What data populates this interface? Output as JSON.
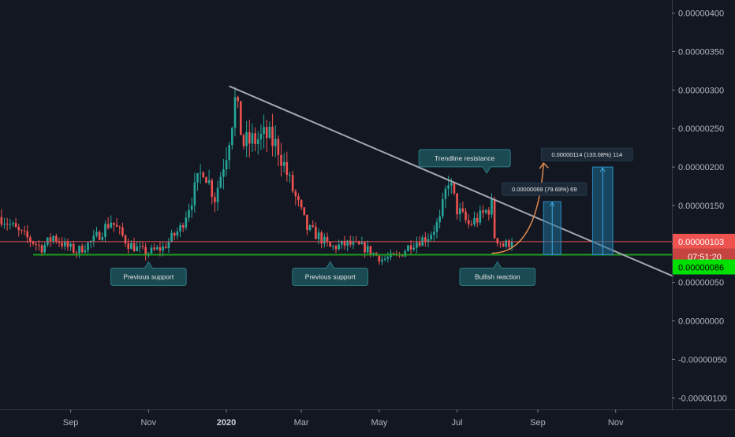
{
  "chart_data": {
    "type": "candlestick",
    "y_ticks": [
      "0.00000400",
      "0.00000350",
      "0.00000300",
      "0.00000250",
      "0.00000200",
      "0.00000150",
      "0.00000100",
      "0.00000050",
      "0.00000000",
      "-0.00000050",
      "-0.00000100"
    ],
    "y_tick_values": [
      4e-06,
      3.5e-06,
      3e-06,
      2.5e-06,
      2e-06,
      1.5e-06,
      1e-06,
      5e-07,
      0.0,
      -5e-07,
      -1e-06
    ],
    "y_range": [
      -1.15e-06,
      4.17e-06
    ],
    "x_ticks": [
      {
        "label": "Sep",
        "bold": false
      },
      {
        "label": "Nov",
        "bold": false
      },
      {
        "label": "2020",
        "bold": true
      },
      {
        "label": "Mar",
        "bold": false
      },
      {
        "label": "May",
        "bold": false
      },
      {
        "label": "Jul",
        "bold": false
      },
      {
        "label": "Sep",
        "bold": false
      },
      {
        "label": "Nov",
        "bold": false
      }
    ],
    "x_tick_index": [
      24,
      51,
      78,
      104,
      131,
      158,
      186,
      213
    ],
    "x_range": [
      0,
      233
    ],
    "grid": false,
    "colors": {
      "up": "#26a69a",
      "down": "#ef5350",
      "background": "#131722",
      "support": "#1e9e1e",
      "trendline": "#a4a7b0",
      "resistance_line": "#e05555",
      "measure": "#1e6e96",
      "arrow": "#e08a4d"
    },
    "price_waypoints": [
      [
        0,
        1.35e-06
      ],
      [
        6,
        1.15e-06
      ],
      [
        10,
        1.05e-06
      ],
      [
        14,
        9.5e-07
      ],
      [
        18,
        1.1e-06
      ],
      [
        22,
        9.8e-07
      ],
      [
        26,
        9e-07
      ],
      [
        32,
        1.05e-06
      ],
      [
        38,
        1.3e-06
      ],
      [
        44,
        1e-06
      ],
      [
        50,
        8.8e-07
      ],
      [
        56,
        9.5e-07
      ],
      [
        62,
        1.2e-06
      ],
      [
        66,
        1.6e-06
      ],
      [
        70,
        2e-06
      ],
      [
        74,
        1.6e-06
      ],
      [
        78,
        2.2e-06
      ],
      [
        81,
        2.85e-06
      ],
      [
        84,
        2.3e-06
      ],
      [
        88,
        2.35e-06
      ],
      [
        92,
        2.4e-06
      ],
      [
        96,
        2.25e-06
      ],
      [
        100,
        1.8e-06
      ],
      [
        103,
        1.5e-06
      ],
      [
        106,
        1.2e-06
      ],
      [
        110,
        1.1e-06
      ],
      [
        114,
        9.5e-07
      ],
      [
        120,
        1e-06
      ],
      [
        126,
        9.5e-07
      ],
      [
        132,
        8e-07
      ],
      [
        138,
        8.5e-07
      ],
      [
        142,
        1e-06
      ],
      [
        148,
        1.1e-06
      ],
      [
        152,
        1.3e-06
      ],
      [
        155,
        1.85e-06
      ],
      [
        158,
        1.45e-06
      ],
      [
        162,
        1.25e-06
      ],
      [
        166,
        1.35e-06
      ],
      [
        170,
        1.5e-06
      ],
      [
        171,
        1.1e-06
      ],
      [
        174,
        9.8e-07
      ],
      [
        177,
        1.03e-06
      ]
    ],
    "last_index": 177,
    "levels": {
      "support_price": 8.6e-07,
      "resistance_price": 1.03e-06,
      "trendline": [
        [
          79,
          3.05e-06
        ],
        [
          233,
          5.8e-07
        ]
      ]
    },
    "measures": [
      {
        "label": "0.00000069 (79.69%) 69",
        "x0": 188,
        "x1": 194,
        "y0": 8.6e-07,
        "y1": 1.55e-06
      },
      {
        "label": "0.00000114 (133.08%) 114",
        "x0": 205,
        "x1": 212,
        "y0": 8.6e-07,
        "y1": 2e-06
      }
    ],
    "projection": {
      "from": [
        170,
        8.8e-07
      ],
      "to": [
        188,
        2.05e-06
      ]
    },
    "annotations": [
      {
        "id": "prev-support-1",
        "text": "Previous support",
        "x": 51,
        "y": 8.6e-07,
        "side": "below"
      },
      {
        "id": "prev-support-2",
        "text": "Previous support",
        "x": 114,
        "y": 8.6e-07,
        "side": "below"
      },
      {
        "id": "trendline-res",
        "text": "Trendline resistance",
        "x": 165,
        "y": 1.9e-06,
        "side": "above"
      },
      {
        "id": "bullish-reaction",
        "text": "Bullish reaction",
        "x": 172,
        "y": 8.6e-07,
        "side": "below"
      }
    ],
    "price_labels": {
      "current": "0.00000103",
      "countdown": "07:51:20",
      "support": "0.00000086"
    }
  }
}
